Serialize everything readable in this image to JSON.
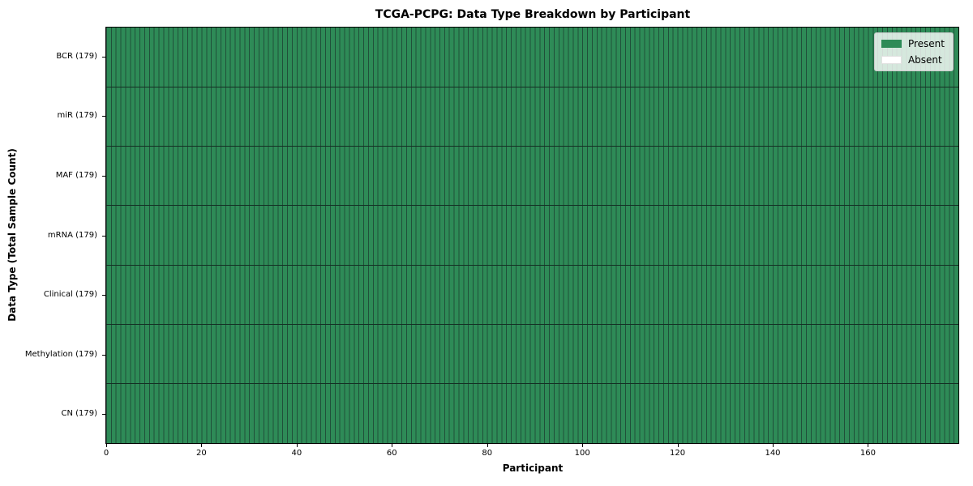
{
  "chart_data": {
    "type": "heatmap",
    "title": "TCGA-PCPG: Data Type Breakdown by Participant",
    "xlabel": "Participant",
    "ylabel": "Data Type (Total Sample Count)",
    "x_ticks": [
      0,
      20,
      40,
      60,
      80,
      100,
      120,
      140,
      160
    ],
    "x_range": [
      0,
      179
    ],
    "n_participants": 179,
    "rows": [
      {
        "label": "BCR (179)",
        "data_type": "BCR",
        "total_samples": 179,
        "present_count": 179,
        "absent_count": 0
      },
      {
        "label": "miR (179)",
        "data_type": "miR",
        "total_samples": 179,
        "present_count": 179,
        "absent_count": 0
      },
      {
        "label": "MAF (179)",
        "data_type": "MAF",
        "total_samples": 179,
        "present_count": 179,
        "absent_count": 0
      },
      {
        "label": "mRNA (179)",
        "data_type": "mRNA",
        "total_samples": 179,
        "present_count": 179,
        "absent_count": 0
      },
      {
        "label": "Clinical (179)",
        "data_type": "Clinical",
        "total_samples": 179,
        "present_count": 179,
        "absent_count": 0
      },
      {
        "label": "Methylation (179)",
        "data_type": "Methylation",
        "total_samples": 179,
        "present_count": 179,
        "absent_count": 0
      },
      {
        "label": "CN (179)",
        "data_type": "CN",
        "total_samples": 179,
        "present_count": 179,
        "absent_count": 0
      }
    ],
    "legend": {
      "position": "upper right",
      "entries": [
        {
          "label": "Present",
          "color": "#2e8b57"
        },
        {
          "label": "Absent",
          "color": "#ffffff"
        }
      ]
    },
    "colors": {
      "present": "#2e8b57",
      "absent": "#ffffff",
      "cell_edge": "#20503a",
      "row_divider": "#143024",
      "plot_border": "#000000",
      "background": "#ffffff"
    }
  }
}
